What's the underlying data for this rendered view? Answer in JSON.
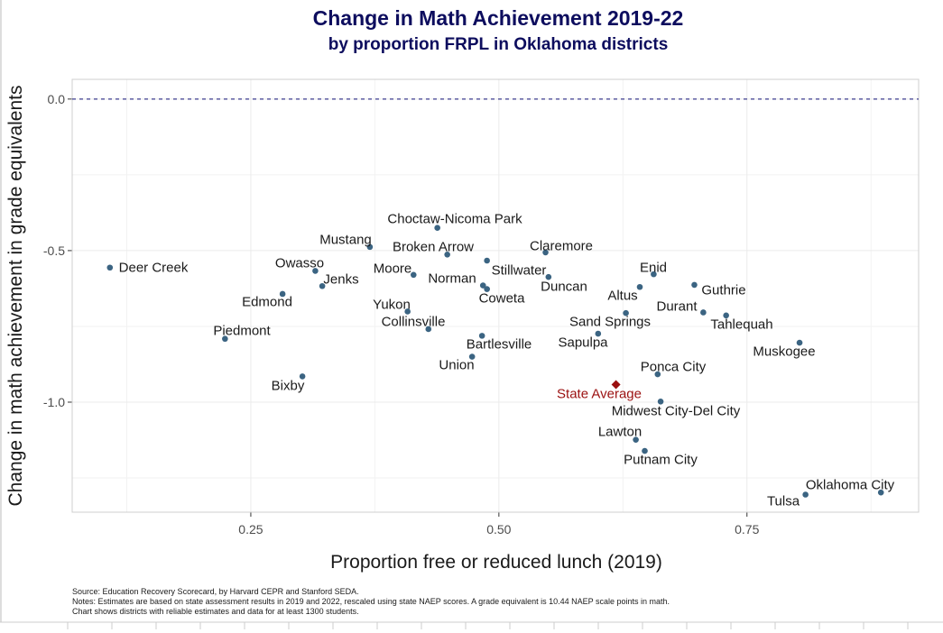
{
  "chart_data": {
    "type": "scatter",
    "title": "Change in Math Achievement 2019-22",
    "subtitle": "by proportion FRPL in Oklahoma districts",
    "xlabel": "Proportion free or reduced lunch (2019)",
    "ylabel": "Change in math achievement in grade equivalents",
    "xlim": [
      0.07,
      0.923
    ],
    "ylim": [
      -1.363,
      0.065
    ],
    "x_ticks": [
      {
        "value": 0.25,
        "label": "0.25"
      },
      {
        "value": 0.5,
        "label": "0.50"
      },
      {
        "value": 0.75,
        "label": "0.75"
      }
    ],
    "y_ticks": [
      {
        "value": 0,
        "label": "0.0"
      },
      {
        "value": -0.5,
        "label": "-0.5"
      },
      {
        "value": -1.0,
        "label": "-1.0"
      }
    ],
    "grid": true,
    "reference_line": {
      "y": 0,
      "style": "dashed",
      "color": "#3d3d8f"
    },
    "point_color": "#3b6482",
    "highlight_color": "#9b1010",
    "points": [
      {
        "name": "Deer Creek",
        "x": 0.108,
        "y": -0.556
      },
      {
        "name": "Choctaw-Nicoma Park",
        "x": 0.438,
        "y": -0.425
      },
      {
        "name": "Mustang",
        "x": 0.37,
        "y": -0.488
      },
      {
        "name": "Broken Arrow",
        "x": 0.448,
        "y": -0.513
      },
      {
        "name": "Owasso",
        "x": 0.315,
        "y": -0.567
      },
      {
        "name": "Jenks",
        "x": 0.322,
        "y": -0.617
      },
      {
        "name": "Moore",
        "x": 0.414,
        "y": -0.58
      },
      {
        "name": "Edmond",
        "x": 0.282,
        "y": -0.643
      },
      {
        "name": "Norman",
        "x": 0.484,
        "y": -0.615
      },
      {
        "name": "Coweta",
        "x": 0.488,
        "y": -0.627
      },
      {
        "name": "Stillwater",
        "x": 0.488,
        "y": -0.533
      },
      {
        "name": "Yukon",
        "x": 0.408,
        "y": -0.701
      },
      {
        "name": "Collinsville",
        "x": 0.429,
        "y": -0.759
      },
      {
        "name": "Piedmont",
        "x": 0.224,
        "y": -0.791
      },
      {
        "name": "Bartlesville",
        "x": 0.483,
        "y": -0.781
      },
      {
        "name": "Union",
        "x": 0.473,
        "y": -0.85
      },
      {
        "name": "Bixby",
        "x": 0.302,
        "y": -0.915
      },
      {
        "name": "Claremore",
        "x": 0.547,
        "y": -0.506
      },
      {
        "name": "Duncan",
        "x": 0.55,
        "y": -0.587
      },
      {
        "name": "Enid",
        "x": 0.656,
        "y": -0.578
      },
      {
        "name": "Altus",
        "x": 0.642,
        "y": -0.62
      },
      {
        "name": "Guthrie",
        "x": 0.697,
        "y": -0.613
      },
      {
        "name": "Durant",
        "x": 0.706,
        "y": -0.704
      },
      {
        "name": "Tahlequah",
        "x": 0.729,
        "y": -0.714
      },
      {
        "name": "Sand Springs",
        "x": 0.628,
        "y": -0.706
      },
      {
        "name": "Sapulpa",
        "x": 0.6,
        "y": -0.774
      },
      {
        "name": "Muskogee",
        "x": 0.803,
        "y": -0.804
      },
      {
        "name": "Ponca City",
        "x": 0.66,
        "y": -0.908
      },
      {
        "name": "State Average",
        "x": 0.618,
        "y": -0.942,
        "highlight": true
      },
      {
        "name": "Midwest City-Del City",
        "x": 0.663,
        "y": -0.998
      },
      {
        "name": "Lawton",
        "x": 0.638,
        "y": -1.124
      },
      {
        "name": "Putnam City",
        "x": 0.647,
        "y": -1.161
      },
      {
        "name": "Tulsa",
        "x": 0.809,
        "y": -1.305
      },
      {
        "name": "Oklahoma City",
        "x": 0.885,
        "y": -1.298
      }
    ]
  },
  "notes": {
    "source": "Source: Education Recovery Scorecard, by Harvard CEPR and Stanford SEDA.",
    "line1": "Notes: Estimates are based on state assessment results in 2019 and 2022, rescaled using state NAEP scores. A grade equivalent is 10.44 NAEP scale points in math.",
    "line2": "Chart shows districts with reliable estimates and data for at least 1300 students."
  }
}
